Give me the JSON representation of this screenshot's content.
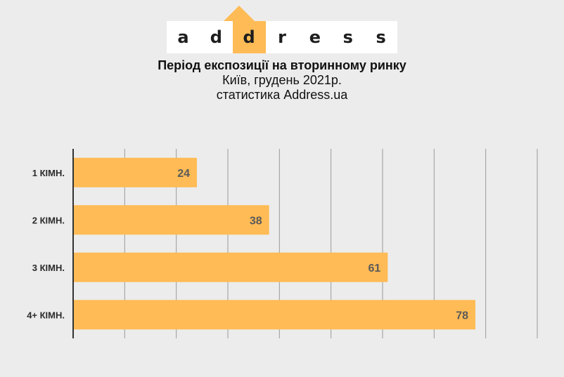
{
  "logo": {
    "letters": [
      "a",
      "d",
      "d",
      "r",
      "e",
      "s",
      "s"
    ],
    "highlight_index": 2,
    "accent_color": "#ffbb55"
  },
  "header": {
    "title": "Період експозиції на вторинному ринку",
    "subtitle_1": "Київ, грудень 2021р.",
    "subtitle_2": "статистика  Address.ua"
  },
  "chart_data": {
    "type": "bar",
    "orientation": "horizontal",
    "categories": [
      "1 КІМН.",
      "2 КІМН.",
      "3 КІМН.",
      "4+ КІМН."
    ],
    "values": [
      24,
      38,
      61,
      78
    ],
    "xlim": [
      0,
      90
    ],
    "grid": true,
    "bar_color": "#ffbb55",
    "value_label_color": "#5a5a5a"
  }
}
